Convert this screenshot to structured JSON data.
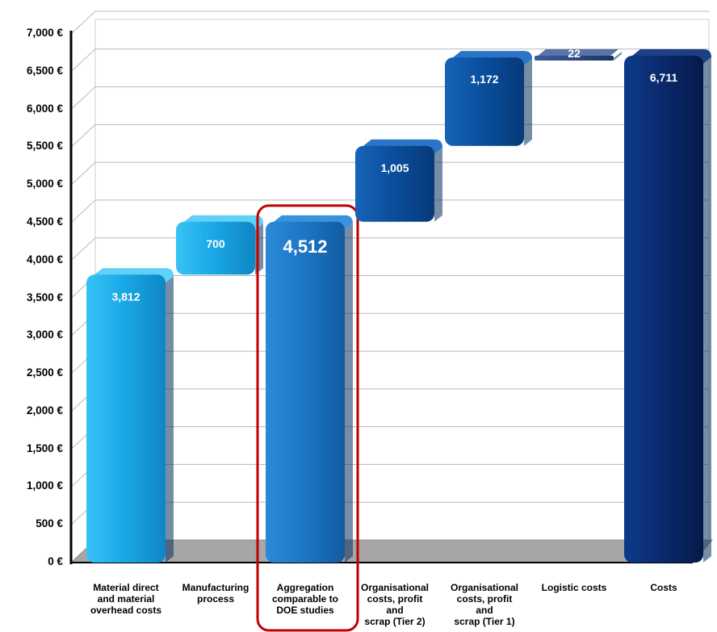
{
  "chart_data": {
    "type": "bar",
    "subtype": "waterfall",
    "categories": [
      "Material direct\nand material\noverhead costs",
      "Manufacturing\nprocess",
      "Aggregation\ncomparable to\nDOE studies",
      "Organisational\ncosts, profit\nand\nscrap (Tier 2)",
      "Organisational\ncosts, profit\nand\nscrap (Tier 1)",
      "Logistic costs",
      "Costs"
    ],
    "bars": [
      {
        "base": 0,
        "value": 3812,
        "label": "3,812",
        "kind": "total"
      },
      {
        "base": 3812,
        "value": 700,
        "label": "700",
        "kind": "increment"
      },
      {
        "base": 0,
        "value": 4512,
        "label": "4,512",
        "kind": "subtotal",
        "highlighted": true
      },
      {
        "base": 4512,
        "value": 1005,
        "label": "1,005",
        "kind": "increment"
      },
      {
        "base": 5517,
        "value": 1172,
        "label": "1,172",
        "kind": "increment"
      },
      {
        "base": 6689,
        "value": 22,
        "label": "22",
        "kind": "increment"
      },
      {
        "base": 0,
        "value": 6711,
        "label": "6,711",
        "kind": "total"
      }
    ],
    "yticks": [
      "0 €",
      "500 €",
      "1,000 €",
      "1,500 €",
      "2,000 €",
      "2,500 €",
      "3,000 €",
      "3,500 €",
      "4,000 €",
      "4,500 €",
      "5,000 €",
      "5,500 €",
      "6,000 €",
      "6,500 €",
      "7,000 €"
    ],
    "ylim": [
      0,
      7000
    ],
    "grid": true,
    "colors": {
      "light": "#1aa9e8",
      "mid": "#1d78c8",
      "dark": "#0a4f9e",
      "total": "#0a2a6e",
      "highlight": "#c00000",
      "floor": "#a6a6a6"
    }
  }
}
